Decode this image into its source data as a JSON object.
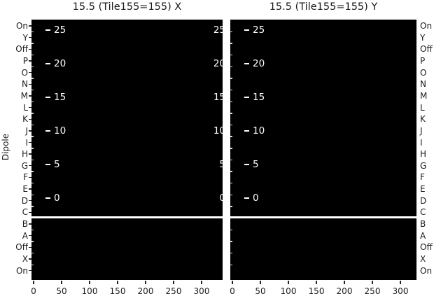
{
  "figure": {
    "background": "#ffffff",
    "panel_color": "#000000",
    "panel_text_color": "#ffffff",
    "axis_text_color": "#1a1a1a",
    "titles": {
      "left": "15.5 (Tile155=155) X",
      "right": "15.5 (Tile155=155) Y"
    },
    "y_axis_label": "Dipole",
    "dipole_labels": [
      "On",
      "Y",
      "Off",
      "P",
      "O",
      "N",
      "M",
      "L",
      "K",
      "J",
      "I",
      "H",
      "G",
      "F",
      "E",
      "D",
      "C",
      "B",
      "A",
      "Off",
      "X",
      "On"
    ],
    "x_tick_labels": [
      "0",
      "50",
      "100",
      "150",
      "200",
      "250",
      "300"
    ],
    "inset_tick_labels": [
      "25",
      "20",
      "15",
      "10",
      "5",
      "0"
    ]
  },
  "chart_data": [
    {
      "type": "heatmap",
      "title": "15.5 (Tile155=155) X",
      "ylabel": "Dipole",
      "y_categories": [
        "On",
        "Y",
        "Off",
        "P",
        "O",
        "N",
        "M",
        "L",
        "K",
        "J",
        "I",
        "H",
        "G",
        "F",
        "E",
        "D",
        "C",
        "B",
        "A",
        "Off",
        "X",
        "On"
      ],
      "x_ticks": [
        0,
        50,
        100,
        150,
        200,
        250,
        300
      ],
      "x_range": [
        0,
        340
      ],
      "values_uniform": 0,
      "appearance": "entire panel at colormap minimum (black)",
      "inset_axis_ticks": [
        25,
        20,
        15,
        10,
        5,
        0
      ],
      "white_divider_between_rows": [
        "C",
        "B"
      ],
      "grid": false,
      "legend": false
    },
    {
      "type": "heatmap",
      "title": "15.5 (Tile155=155) Y",
      "ylabel": "Dipole",
      "y_categories": [
        "On",
        "Y",
        "Off",
        "P",
        "O",
        "N",
        "M",
        "L",
        "K",
        "J",
        "I",
        "H",
        "G",
        "F",
        "E",
        "D",
        "C",
        "B",
        "A",
        "Off",
        "X",
        "On"
      ],
      "x_ticks": [
        0,
        50,
        100,
        150,
        200,
        250,
        300
      ],
      "x_range": [
        0,
        340
      ],
      "values_uniform": 0,
      "appearance": "entire panel at colormap minimum (black)",
      "inset_axis_ticks": [
        25,
        20,
        15,
        10,
        5,
        0
      ],
      "white_divider_between_rows": [
        "C",
        "B"
      ],
      "grid": false,
      "legend": false
    }
  ]
}
